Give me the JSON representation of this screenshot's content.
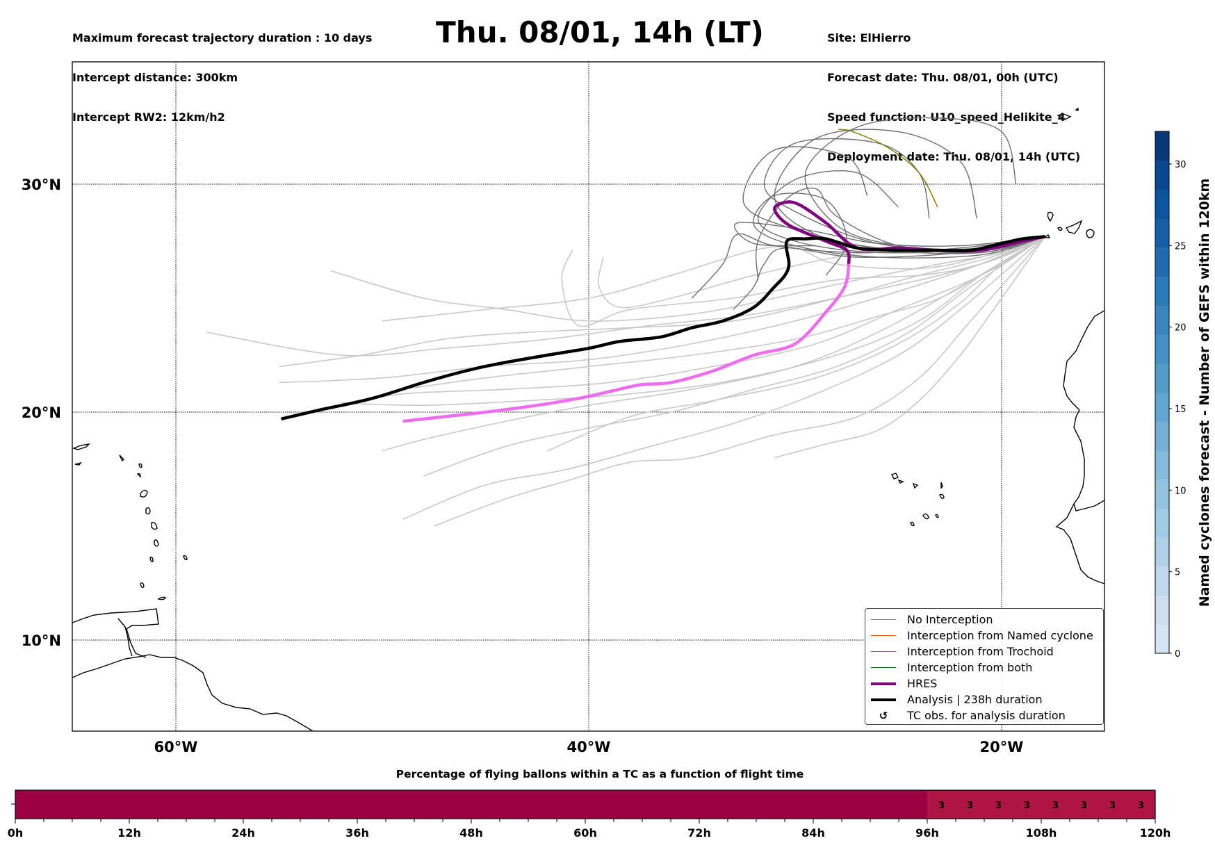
{
  "header": {
    "left_lines": [
      "Maximum forecast trajectory duration : 10 days",
      "Intercept distance: 300km",
      "Intercept RW2: 12km/h2"
    ],
    "title": "Thu. 08/01, 14h (LT)",
    "right_lines": [
      "Site: ElHierro",
      "Forecast date: Thu. 08/01, 00h (UTC)",
      "Speed function: U10_speed_Helikite_4",
      "Deployment date: Thu. 08/01, 14h (UTC)"
    ]
  },
  "map": {
    "lon_range": [
      -65,
      -15
    ],
    "lat_range": [
      5,
      35
    ],
    "lon_ticks": [
      {
        "value": -60,
        "label": "60°W"
      },
      {
        "value": -40,
        "label": "40°W"
      },
      {
        "value": -20,
        "label": "20°W"
      }
    ],
    "lat_ticks": [
      {
        "value": 30,
        "label": "30°N"
      },
      {
        "value": 20,
        "label": "20°N"
      },
      {
        "value": 10,
        "label": "10°N"
      }
    ],
    "colors": {
      "no_interception": "#6e6e6e",
      "no_interception_light": "#c8c8c8",
      "named_cyclone": "#ff5a1e",
      "trochoid": "#808000",
      "both": "#2ca02c",
      "hres": "#800080",
      "hres_light": "#ee6cee",
      "analysis": "#000000"
    },
    "launch_site": {
      "lon": -17.9,
      "lat": 27.7,
      "name": "ElHierro"
    },
    "analysis_track": [
      [
        -17.9,
        27.7
      ],
      [
        -19,
        27.6
      ],
      [
        -20,
        27.4
      ],
      [
        -21.5,
        27.1
      ],
      [
        -23,
        27.1
      ],
      [
        -25,
        27.1
      ],
      [
        -27,
        27.2
      ],
      [
        -28.5,
        27.6
      ],
      [
        -29.5,
        27.6
      ],
      [
        -30.4,
        27.5
      ],
      [
        -30.3,
        26.5
      ],
      [
        -30.5,
        26
      ],
      [
        -31,
        25.5
      ],
      [
        -32,
        24.6
      ],
      [
        -33.5,
        24
      ],
      [
        -35,
        23.7
      ],
      [
        -36.5,
        23.3
      ],
      [
        -38.5,
        23.1
      ],
      [
        -40,
        22.8
      ],
      [
        -42,
        22.5
      ],
      [
        -44.5,
        22.1
      ],
      [
        -46,
        21.8
      ],
      [
        -48,
        21.3
      ],
      [
        -50.5,
        20.6
      ],
      [
        -53,
        20.1
      ],
      [
        -54.9,
        19.7
      ]
    ],
    "hres_track": [
      [
        -17.9,
        27.7
      ],
      [
        -19,
        27.5
      ],
      [
        -21,
        27.1
      ],
      [
        -23,
        27.1
      ],
      [
        -25,
        27.2
      ],
      [
        -27,
        27.2
      ],
      [
        -28.5,
        28.3
      ],
      [
        -29.8,
        29.1
      ],
      [
        -30.5,
        29.2
      ],
      [
        -31,
        28.9
      ],
      [
        -30.3,
        28.2
      ],
      [
        -28.5,
        27.5
      ],
      [
        -27.5,
        27.1
      ],
      [
        -27.4,
        26.5
      ],
      [
        -27.6,
        25.5
      ],
      [
        -28.5,
        24.4
      ],
      [
        -30,
        23
      ],
      [
        -32,
        22.5
      ],
      [
        -34,
        21.8
      ],
      [
        -36,
        21.3
      ],
      [
        -37.5,
        21.2
      ],
      [
        -39,
        20.9
      ],
      [
        -40.5,
        20.6
      ],
      [
        -42.5,
        20.3
      ],
      [
        -45,
        20.0
      ],
      [
        -47,
        19.8
      ],
      [
        -49,
        19.6
      ]
    ],
    "hres_dark_until_index": 13,
    "ensemble_dark": [
      [
        [
          -17.9,
          27.7
        ],
        [
          -21,
          27.1
        ],
        [
          -25,
          27.3
        ],
        [
          -28,
          28.2
        ],
        [
          -29.5,
          30.5
        ],
        [
          -27,
          32.5
        ],
        [
          -23,
          32.9
        ],
        [
          -20,
          32.3
        ],
        [
          -19.3,
          30
        ]
      ],
      [
        [
          -17.9,
          27.7
        ],
        [
          -21,
          27
        ],
        [
          -25,
          27.1
        ],
        [
          -29,
          27.8
        ],
        [
          -31,
          29.5
        ],
        [
          -29,
          32
        ],
        [
          -25,
          32.3
        ],
        [
          -22,
          31
        ],
        [
          -21.2,
          28.5
        ]
      ],
      [
        [
          -17.9,
          27.7
        ],
        [
          -21,
          27.2
        ],
        [
          -26,
          27
        ],
        [
          -30,
          27.5
        ],
        [
          -31.8,
          28.5
        ],
        [
          -30,
          30.2
        ],
        [
          -27,
          30.5
        ],
        [
          -25,
          29
        ]
      ],
      [
        [
          -17.9,
          27.7
        ],
        [
          -21,
          26.9
        ],
        [
          -26,
          26.8
        ],
        [
          -30,
          27.3
        ],
        [
          -32,
          28.2
        ],
        [
          -31,
          29.5
        ],
        [
          -28.5,
          29.3
        ],
        [
          -27.5,
          27.5
        ],
        [
          -28.5,
          26
        ]
      ],
      [
        [
          -17.9,
          27.7
        ],
        [
          -21,
          27.2
        ],
        [
          -26,
          27.2
        ],
        [
          -30,
          28
        ],
        [
          -32.5,
          29.2
        ],
        [
          -31,
          31.5
        ],
        [
          -27.5,
          31.2
        ],
        [
          -26.5,
          29.5
        ]
      ],
      [
        [
          -17.9,
          27.7
        ],
        [
          -22,
          27.2
        ],
        [
          -27,
          27
        ],
        [
          -31,
          27.3
        ],
        [
          -32.8,
          27.8
        ],
        [
          -33.5,
          26.5
        ],
        [
          -35,
          25
        ]
      ],
      [
        [
          -17.9,
          27.7
        ],
        [
          -22,
          27
        ],
        [
          -27,
          26.8
        ],
        [
          -30.5,
          27.2
        ],
        [
          -31.5,
          26.5
        ],
        [
          -32,
          25.5
        ],
        [
          -33,
          24.5
        ]
      ],
      [
        [
          -17.9,
          27.7
        ],
        [
          -21,
          27
        ],
        [
          -25,
          27.3
        ],
        [
          -28,
          28.6
        ],
        [
          -29,
          29.8
        ],
        [
          -30.5,
          29.3
        ],
        [
          -31.8,
          27.5
        ],
        [
          -31.8,
          25.8
        ]
      ],
      [
        [
          -17.9,
          27.7
        ],
        [
          -22,
          27.3
        ],
        [
          -26,
          27.4
        ],
        [
          -29.5,
          28
        ],
        [
          -32.8,
          28.3
        ],
        [
          -32,
          27.4
        ],
        [
          -29,
          27.3
        ]
      ],
      [
        [
          -17.9,
          27.7
        ],
        [
          -21,
          27.1
        ],
        [
          -26,
          27.4
        ],
        [
          -30,
          28.8
        ],
        [
          -31.5,
          30
        ],
        [
          -30,
          31.8
        ],
        [
          -26,
          31.8
        ],
        [
          -24,
          30.5
        ],
        [
          -23.5,
          28.5
        ]
      ]
    ],
    "ensemble_trochoid": [
      [
        [
          -27.9,
          32.4
        ],
        [
          -27.2,
          32.3
        ],
        [
          -25.5,
          31.6
        ],
        [
          -24,
          30.5
        ],
        [
          -23.1,
          29.0
        ]
      ]
    ],
    "ensemble_light": [
      [
        [
          -17.9,
          27.7
        ],
        [
          -20,
          27
        ],
        [
          -23,
          26.5
        ],
        [
          -27,
          25.8
        ],
        [
          -31,
          25
        ],
        [
          -35,
          24.3
        ],
        [
          -40,
          24
        ],
        [
          -44,
          24.5
        ],
        [
          -48,
          25
        ],
        [
          -52.5,
          26.2
        ]
      ],
      [
        [
          -17.9,
          27.7
        ],
        [
          -20.5,
          26.8
        ],
        [
          -24,
          26
        ],
        [
          -28,
          25
        ],
        [
          -33,
          24
        ],
        [
          -38,
          23.7
        ],
        [
          -43,
          23.5
        ],
        [
          -47,
          23.2
        ],
        [
          -51,
          22.5
        ],
        [
          -55,
          22
        ]
      ],
      [
        [
          -17.9,
          27.7
        ],
        [
          -21,
          26.5
        ],
        [
          -25,
          25.3
        ],
        [
          -30,
          24
        ],
        [
          -35,
          23
        ],
        [
          -40,
          22.3
        ],
        [
          -45,
          22
        ],
        [
          -50,
          21.5
        ],
        [
          -55,
          21.3
        ]
      ],
      [
        [
          -17.9,
          27.7
        ],
        [
          -21,
          26
        ],
        [
          -25,
          24.5
        ],
        [
          -29,
          23
        ],
        [
          -34,
          22
        ],
        [
          -39,
          21.3
        ],
        [
          -44,
          21
        ],
        [
          -49,
          20.8
        ],
        [
          -52,
          20.3
        ]
      ],
      [
        [
          -17.9,
          27.7
        ],
        [
          -22,
          25.5
        ],
        [
          -26,
          23.5
        ],
        [
          -30,
          22
        ],
        [
          -35,
          21
        ],
        [
          -40,
          20.3
        ],
        [
          -44,
          19.6
        ],
        [
          -48,
          18.8
        ],
        [
          -50,
          18.3
        ]
      ],
      [
        [
          -17.9,
          27.7
        ],
        [
          -22,
          24.5
        ],
        [
          -25,
          22.5
        ],
        [
          -29,
          20.8
        ],
        [
          -33,
          19.5
        ],
        [
          -37,
          18.5
        ],
        [
          -41,
          17.5
        ],
        [
          -45,
          16.8
        ],
        [
          -49,
          15.3
        ]
      ],
      [
        [
          -17.9,
          27.7
        ],
        [
          -21.5,
          24
        ],
        [
          -24,
          21.5
        ],
        [
          -27,
          19.8
        ],
        [
          -31,
          19
        ],
        [
          -35,
          18
        ],
        [
          -38,
          17.8
        ],
        [
          -41,
          17
        ],
        [
          -44,
          16.2
        ],
        [
          -47.5,
          15
        ]
      ],
      [
        [
          -17.9,
          27.7
        ],
        [
          -20,
          25
        ],
        [
          -22,
          22.5
        ],
        [
          -24,
          20.5
        ],
        [
          -26,
          19.2
        ],
        [
          -28.5,
          18.6
        ],
        [
          -31,
          18
        ]
      ],
      [
        [
          -17.9,
          27.7
        ],
        [
          -21,
          26.5
        ],
        [
          -24,
          26
        ],
        [
          -28,
          25.8
        ],
        [
          -33,
          25
        ],
        [
          -38,
          24.5
        ],
        [
          -40.5,
          23.8
        ],
        [
          -41.3,
          25.8
        ],
        [
          -40.8,
          27.1
        ]
      ],
      [
        [
          -17.9,
          27.7
        ],
        [
          -22,
          27
        ],
        [
          -26,
          27
        ],
        [
          -28,
          26.8
        ],
        [
          -32,
          26
        ],
        [
          -36,
          25
        ],
        [
          -38.5,
          24.6
        ],
        [
          -39.5,
          25.5
        ],
        [
          -39.3,
          26.8
        ]
      ],
      [
        [
          -17.9,
          27.7
        ],
        [
          -20,
          26.5
        ],
        [
          -22,
          24.8
        ],
        [
          -25,
          23
        ],
        [
          -29,
          21.5
        ],
        [
          -34,
          20.5
        ],
        [
          -38,
          19.8
        ],
        [
          -42,
          18.3
        ]
      ],
      [
        [
          -17.9,
          27.7
        ],
        [
          -21,
          26.8
        ],
        [
          -24,
          26.3
        ],
        [
          -28,
          26.5
        ],
        [
          -30,
          27.2
        ],
        [
          -32,
          27.1
        ],
        [
          -36,
          26
        ],
        [
          -40,
          25
        ],
        [
          -45,
          24.5
        ],
        [
          -50,
          24
        ]
      ],
      [
        [
          -17.9,
          27.7
        ],
        [
          -20.5,
          26.3
        ],
        [
          -23,
          25
        ],
        [
          -26,
          24.2
        ],
        [
          -30,
          23.2
        ],
        [
          -35,
          22.5
        ],
        [
          -40,
          22
        ],
        [
          -45,
          21.5
        ],
        [
          -49,
          21
        ]
      ],
      [
        [
          -17.9,
          27.7
        ],
        [
          -21,
          26
        ],
        [
          -24,
          24
        ],
        [
          -28,
          22.5
        ],
        [
          -33,
          21.4
        ],
        [
          -38,
          20.8
        ],
        [
          -43,
          20.5
        ],
        [
          -48,
          20.3
        ],
        [
          -52,
          20.4
        ]
      ],
      [
        [
          -17.9,
          27.7
        ],
        [
          -20,
          26.8
        ],
        [
          -23,
          26
        ],
        [
          -27,
          25.2
        ],
        [
          -32,
          24.3
        ],
        [
          -37,
          23.8
        ],
        [
          -42,
          23.2
        ],
        [
          -47,
          22.8
        ],
        [
          -52,
          22.5
        ],
        [
          -58.5,
          23.5
        ]
      ],
      [
        [
          -17.9,
          27.7
        ],
        [
          -21.5,
          25.5
        ],
        [
          -24.5,
          23.5
        ],
        [
          -28,
          22
        ],
        [
          -32,
          21
        ],
        [
          -36,
          20
        ],
        [
          -40,
          19.3
        ],
        [
          -44,
          18.5
        ],
        [
          -48,
          17.2
        ]
      ]
    ],
    "islands_note": "Coastlines: Caribbean (Lesser Antilles, Trinidad, Venezuela/Guyana coast), Canary Islands, Madeira, Cape Verde, West African coast"
  },
  "legend": {
    "items": [
      {
        "label": "No Interception",
        "style": "thin",
        "color": "#808080"
      },
      {
        "label": "Interception from Named cyclone",
        "style": "thin",
        "color": "#ff4500"
      },
      {
        "label": "Interception from Trochoid",
        "style": "thin",
        "color": "#808000"
      },
      {
        "label": "Interception from both",
        "style": "thin",
        "color": "#008000"
      },
      {
        "label": "HRES",
        "style": "thick",
        "color": "#800080"
      },
      {
        "label": "Analysis | 238h duration",
        "style": "thick",
        "color": "#000000"
      },
      {
        "label": "TC obs. for analysis duration",
        "style": "marker",
        "color": "#000000",
        "marker": "↺"
      }
    ]
  },
  "colorbar": {
    "title": "Named cyclones forecast - Number of GEFS within 120km",
    "range": [
      0,
      32
    ],
    "ticks": [
      0,
      5,
      10,
      15,
      20,
      25,
      30
    ],
    "colors": [
      "#d6e5f4",
      "#cddff1",
      "#c2d8ee",
      "#b2d1e9",
      "#a1cae4",
      "#94c3e0",
      "#84bbdc",
      "#72b0d8",
      "#61a6d2",
      "#529cca",
      "#4492c5",
      "#3786c0",
      "#2a79b8",
      "#1f6cb0",
      "#1561a9",
      "#0b549e",
      "#08478f",
      "#083a7a"
    ]
  },
  "bottom_bar": {
    "title": "Percentage of flying ballons within a TC as a function of flight time",
    "x_range_hours": [
      0,
      120
    ],
    "tick_hours": [
      0,
      12,
      24,
      36,
      48,
      60,
      72,
      84,
      96,
      108,
      120
    ],
    "tick_labels": [
      "0h",
      "12h",
      "24h",
      "36h",
      "48h",
      "60h",
      "72h",
      "84h",
      "96h",
      "108h",
      "120h"
    ],
    "minor_step_hours": 3,
    "segments": [
      {
        "from": 0,
        "to": 96,
        "percent": 0,
        "color": "#9b0040"
      },
      {
        "from": 96,
        "to": 120,
        "percent": 3,
        "color": "#ae1545"
      }
    ],
    "value_labels": [
      {
        "hour": 97.5,
        "text": "3"
      },
      {
        "hour": 100.5,
        "text": "3"
      },
      {
        "hour": 103.5,
        "text": "3"
      },
      {
        "hour": 106.5,
        "text": "3"
      },
      {
        "hour": 109.5,
        "text": "3"
      },
      {
        "hour": 112.5,
        "text": "3"
      },
      {
        "hour": 115.5,
        "text": "3"
      },
      {
        "hour": 118.5,
        "text": "3"
      }
    ]
  }
}
